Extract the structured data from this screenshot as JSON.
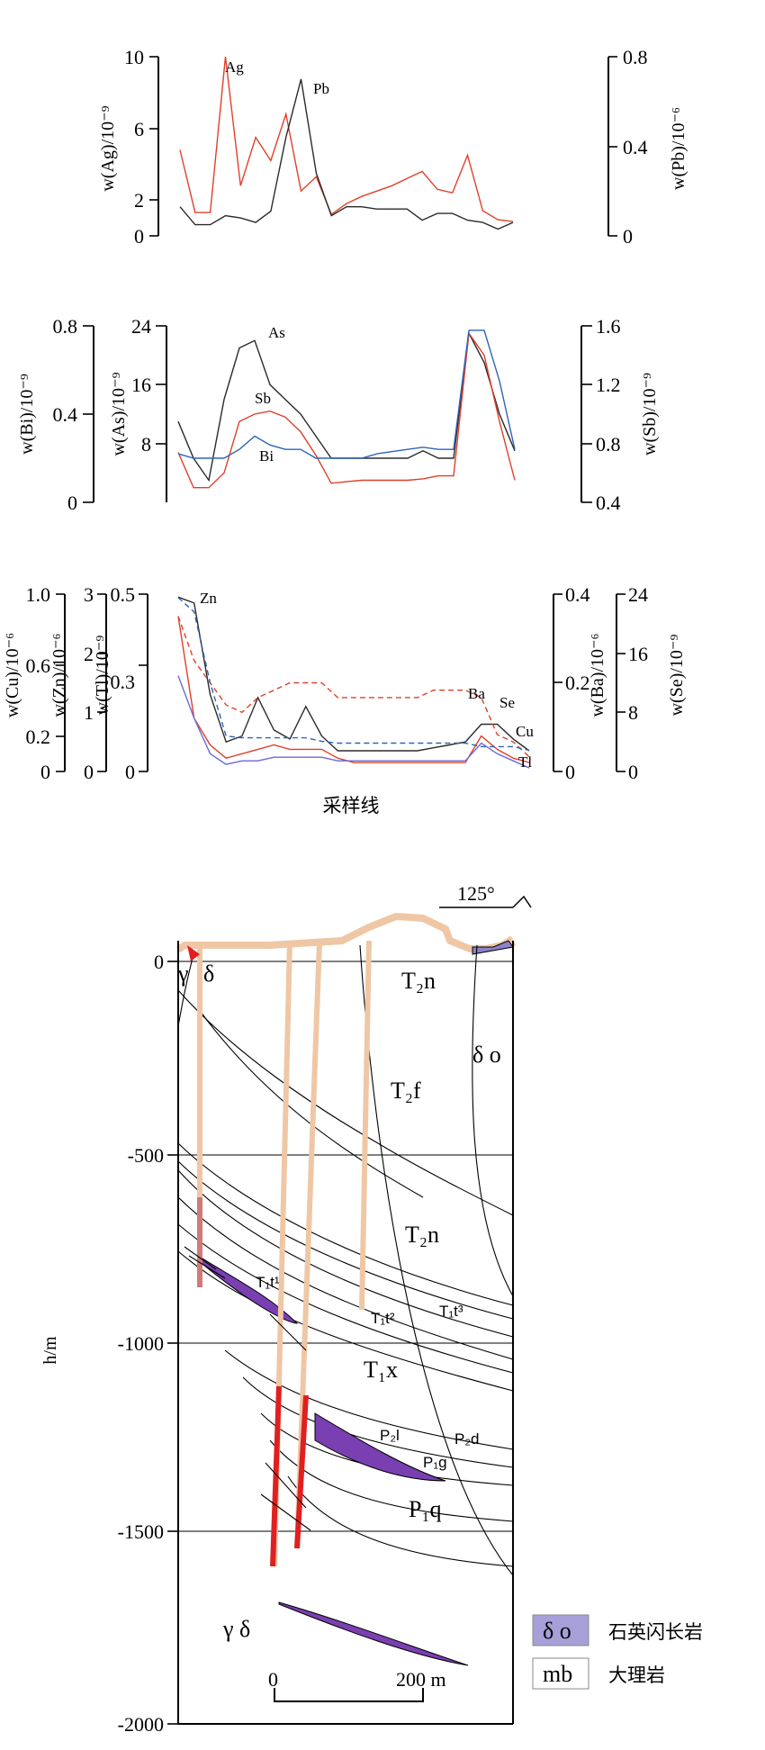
{
  "chart_data": [
    {
      "type": "line",
      "x_count": 23,
      "series": [
        {
          "name": "Ag",
          "axis": "left",
          "color": "#e0402a",
          "values": [
            4.8,
            1.3,
            1.3,
            10,
            2.8,
            5.5,
            4.2,
            6.8,
            2.5,
            3.3,
            1.2,
            1.8,
            2.2,
            2.5,
            2.8,
            3.2,
            3.6,
            2.6,
            2.4,
            4.5,
            1.4,
            0.9,
            0.8
          ]
        },
        {
          "name": "Pb",
          "axis": "right",
          "color": "#2b2b2b",
          "values": [
            0.13,
            0.05,
            0.05,
            0.09,
            0.08,
            0.06,
            0.11,
            0.44,
            0.7,
            0.28,
            0.09,
            0.13,
            0.13,
            0.12,
            0.12,
            0.12,
            0.07,
            0.1,
            0.1,
            0.07,
            0.06,
            0.03,
            0.06
          ]
        }
      ],
      "left_axis": {
        "label": "w(Ag)/10⁻⁹",
        "ticks": [
          "0",
          "2",
          "6",
          "10"
        ],
        "range": [
          0,
          10
        ]
      },
      "right_axis": {
        "label": "w(Pb)/10⁻⁶",
        "ticks": [
          "0",
          "0.4",
          "0.8"
        ],
        "range": [
          0,
          0.8
        ]
      }
    },
    {
      "type": "line",
      "x_count": 23,
      "series": [
        {
          "name": "As",
          "axis": "As",
          "color": "#2b2b2b",
          "values": [
            11,
            6,
            3,
            14,
            21,
            22,
            16,
            14,
            12,
            9,
            6,
            6,
            6,
            6,
            6,
            6,
            7,
            6,
            6,
            23,
            19,
            12,
            7
          ]
        },
        {
          "name": "Sb",
          "axis": "Sb",
          "color": "#e0402a",
          "values": [
            0.74,
            0.5,
            0.5,
            0.6,
            0.95,
            1.0,
            1.02,
            0.98,
            0.88,
            0.72,
            0.53,
            0.54,
            0.55,
            0.55,
            0.55,
            0.55,
            0.56,
            0.58,
            0.58,
            1.55,
            1.4,
            0.95,
            0.55
          ]
        },
        {
          "name": "Bi",
          "axis": "Bi",
          "color": "#2e64b8",
          "values": [
            0.22,
            0.2,
            0.2,
            0.2,
            0.24,
            0.3,
            0.26,
            0.24,
            0.24,
            0.2,
            0.2,
            0.2,
            0.2,
            0.22,
            0.23,
            0.24,
            0.25,
            0.24,
            0.24,
            0.78,
            0.78,
            0.55,
            0.24
          ]
        }
      ],
      "axes": [
        {
          "key": "Bi",
          "label": "w(Bi)/10⁻⁹",
          "ticks": [
            "0",
            "0.4",
            "0.8"
          ],
          "range": [
            0,
            0.8
          ]
        },
        {
          "key": "As",
          "label": "w(As)/10⁻⁹",
          "ticks": [
            "8",
            "16",
            "24"
          ],
          "range": [
            0,
            24
          ]
        },
        {
          "key": "Sb",
          "label": "w(Sb)/10⁻⁹",
          "ticks": [
            "0.4",
            "0.8",
            "1.2",
            "1.6"
          ],
          "range": [
            0.4,
            1.6
          ]
        }
      ]
    },
    {
      "type": "line",
      "x_count": 23,
      "xlabel": "采样线",
      "series": [
        {
          "name": "Zn",
          "axis": "Zn",
          "color": "#2b2b2b",
          "dash": false,
          "values": [
            2.95,
            2.85,
            1.3,
            0.5,
            0.6,
            1.25,
            0.7,
            0.55,
            1.1,
            0.6,
            0.35,
            0.35,
            0.35,
            0.35,
            0.35,
            0.35,
            0.4,
            0.45,
            0.5,
            0.8,
            0.8,
            0.55,
            0.35
          ]
        },
        {
          "name": "Ba",
          "axis": "Ba",
          "color": "#e0402a",
          "dash": false,
          "values": [
            0.35,
            0.12,
            0.06,
            0.03,
            0.04,
            0.05,
            0.06,
            0.05,
            0.05,
            0.05,
            0.03,
            0.02,
            0.02,
            0.02,
            0.02,
            0.02,
            0.02,
            0.02,
            0.02,
            0.08,
            0.05,
            0.03,
            0.02
          ]
        },
        {
          "name": "Se",
          "axis": "Se",
          "color": "#e0402a",
          "dash": true,
          "values": [
            21,
            15,
            12,
            9,
            8,
            10,
            11,
            12,
            12,
            12,
            10,
            10,
            10,
            10,
            10,
            10,
            11,
            11,
            11,
            10,
            5,
            4,
            2
          ]
        },
        {
          "name": "Cu",
          "axis": "Cu",
          "color": "#2e64b8",
          "dash": true,
          "values": [
            0.98,
            0.9,
            0.5,
            0.2,
            0.19,
            0.19,
            0.19,
            0.19,
            0.19,
            0.17,
            0.16,
            0.16,
            0.16,
            0.16,
            0.16,
            0.16,
            0.16,
            0.16,
            0.16,
            0.14,
            0.14,
            0.14,
            0.12
          ]
        },
        {
          "name": "Tl",
          "axis": "Tl",
          "color": "#6a6ad8",
          "dash": false,
          "values": [
            0.27,
            0.15,
            0.05,
            0.02,
            0.03,
            0.03,
            0.04,
            0.04,
            0.04,
            0.04,
            0.03,
            0.03,
            0.03,
            0.03,
            0.03,
            0.03,
            0.03,
            0.03,
            0.03,
            0.08,
            0.05,
            0.03,
            0.01
          ]
        }
      ],
      "axes": [
        {
          "key": "Cu",
          "label": "w(Cu)/10⁻⁶",
          "ticks": [
            "0",
            "0.2",
            "0.6",
            "1.0"
          ],
          "range": [
            0,
            1.0
          ]
        },
        {
          "key": "Zn",
          "label": "w(Zn)/10⁻⁶",
          "ticks": [
            "0",
            "1",
            "2",
            "3"
          ],
          "range": [
            0,
            3
          ]
        },
        {
          "key": "Tl",
          "label": "w(Tl)/10⁻⁹",
          "ticks": [
            "0",
            "0.3",
            "0.5"
          ],
          "range": [
            0,
            0.5
          ]
        },
        {
          "key": "Ba",
          "label": "w(Ba)/10⁻⁶",
          "ticks": [
            "0",
            "0.2",
            "0.4"
          ],
          "range": [
            0,
            0.4
          ]
        },
        {
          "key": "Se",
          "label": "w(Se)/10⁻⁹",
          "ticks": [
            "0",
            "8",
            "16",
            "24"
          ],
          "range": [
            0,
            24
          ]
        }
      ]
    }
  ],
  "section": {
    "y_label": "h/m",
    "y_ticks": [
      "0",
      "-500",
      "-1000",
      "-1500",
      "-2000"
    ],
    "azimuth": "125°",
    "units": [
      "T₂n",
      "T₂f",
      "T₂n",
      "δ o",
      "T₁t¹",
      "T₁t²",
      "T₁t³",
      "T₁x",
      "P₂l",
      "P₂d",
      "P₁g",
      "P₁q",
      "γ δ",
      "δ",
      "γ"
    ],
    "scale_bar": {
      "zero": "0",
      "end": "200 m"
    },
    "legend": [
      {
        "symbol": "δ o",
        "text": "石英闪长岩",
        "color": "#a79fd8"
      },
      {
        "symbol": "mb",
        "text": "大理岩",
        "color": "#ffffff"
      }
    ]
  }
}
